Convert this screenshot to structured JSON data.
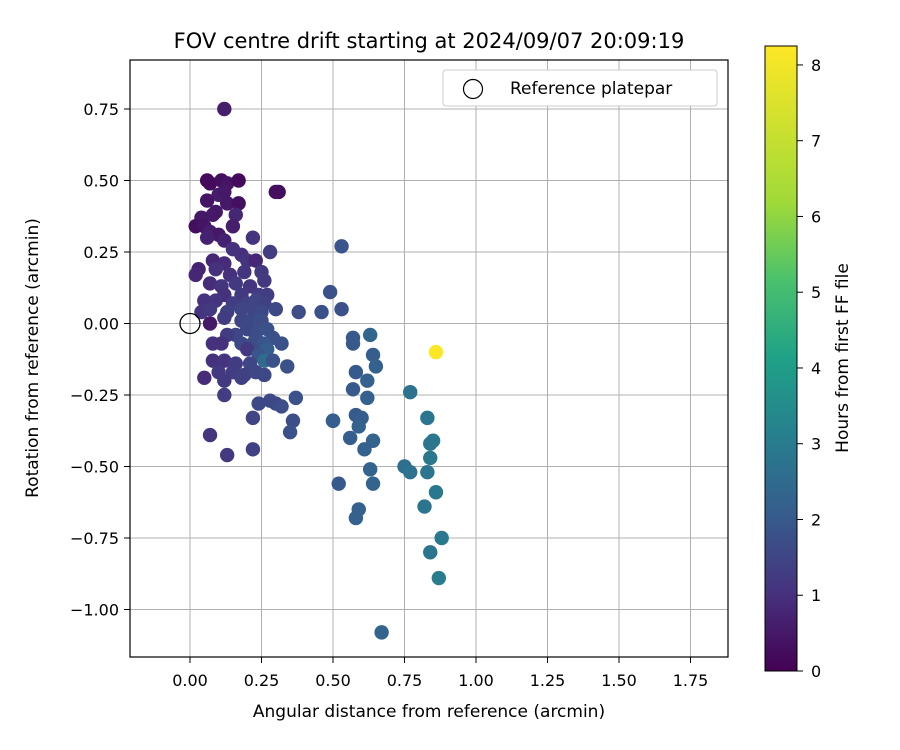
{
  "chart_data": {
    "type": "scatter",
    "title": "FOV centre drift starting at 2024/09/07 20:09:19",
    "xlabel": "Angular distance from reference (arcmin)",
    "ylabel": "Rotation from reference (arcmin)",
    "xlim": [
      -0.21,
      1.89
    ],
    "ylim": [
      -1.17,
      0.92
    ],
    "xticks": [
      "0.00",
      "0.25",
      "0.50",
      "0.75",
      "1.00",
      "1.25",
      "1.50",
      "1.75"
    ],
    "xtick_values": [
      0,
      0.25,
      0.5,
      0.75,
      1.0,
      1.25,
      1.5,
      1.75
    ],
    "yticks": [
      "0.75",
      "0.50",
      "0.25",
      "0.00",
      "−0.25",
      "−0.50",
      "−0.75",
      "−1.00"
    ],
    "ytick_values": [
      0.75,
      0.5,
      0.25,
      0,
      -0.25,
      -0.5,
      -0.75,
      -1.0
    ],
    "grid": true,
    "legend_position": "top-right",
    "legend": {
      "marker": "open-circle",
      "label": "Reference platepar"
    },
    "reference_point": {
      "x": 0.0,
      "y": 0.0
    },
    "colorbar": {
      "label": "Hours from first FF file",
      "colormap": "viridis",
      "range": [
        0,
        8.25
      ],
      "ticks": [
        "0",
        "1",
        "2",
        "3",
        "4",
        "5",
        "6",
        "7",
        "8"
      ],
      "tick_values": [
        0,
        1,
        2,
        3,
        4,
        5,
        6,
        7,
        8
      ]
    },
    "points": [
      {
        "x": 0.12,
        "y": 0.75,
        "h": 0.6
      },
      {
        "x": 0.06,
        "y": 0.5,
        "h": 0.2
      },
      {
        "x": 0.07,
        "y": 0.49,
        "h": 0.2
      },
      {
        "x": 0.11,
        "y": 0.5,
        "h": 0.3
      },
      {
        "x": 0.13,
        "y": 0.49,
        "h": 0.4
      },
      {
        "x": 0.17,
        "y": 0.5,
        "h": 0.2
      },
      {
        "x": 0.3,
        "y": 0.46,
        "h": 0.3
      },
      {
        "x": 0.31,
        "y": 0.46,
        "h": 0.3
      },
      {
        "x": 0.1,
        "y": 0.45,
        "h": 0.6
      },
      {
        "x": 0.12,
        "y": 0.46,
        "h": 0.5
      },
      {
        "x": 0.06,
        "y": 0.43,
        "h": 0.4
      },
      {
        "x": 0.13,
        "y": 0.42,
        "h": 0.5
      },
      {
        "x": 0.17,
        "y": 0.42,
        "h": 0.3
      },
      {
        "x": 0.09,
        "y": 0.39,
        "h": 0.5
      },
      {
        "x": 0.16,
        "y": 0.38,
        "h": 0.8
      },
      {
        "x": 0.04,
        "y": 0.37,
        "h": 0.5
      },
      {
        "x": 0.08,
        "y": 0.38,
        "h": 0.5
      },
      {
        "x": 0.02,
        "y": 0.34,
        "h": 0.3
      },
      {
        "x": 0.05,
        "y": 0.34,
        "h": 0.4
      },
      {
        "x": 0.15,
        "y": 0.34,
        "h": 0.6
      },
      {
        "x": 0.07,
        "y": 0.32,
        "h": 0.6
      },
      {
        "x": 0.1,
        "y": 0.31,
        "h": 0.5
      },
      {
        "x": 0.06,
        "y": 0.3,
        "h": 0.7
      },
      {
        "x": 0.12,
        "y": 0.29,
        "h": 0.7
      },
      {
        "x": 0.22,
        "y": 0.3,
        "h": 1.1
      },
      {
        "x": 0.15,
        "y": 0.26,
        "h": 1.0
      },
      {
        "x": 0.28,
        "y": 0.25,
        "h": 1.3
      },
      {
        "x": 0.18,
        "y": 0.24,
        "h": 1.0
      },
      {
        "x": 0.08,
        "y": 0.22,
        "h": 0.8
      },
      {
        "x": 0.12,
        "y": 0.21,
        "h": 0.9
      },
      {
        "x": 0.2,
        "y": 0.22,
        "h": 1.1
      },
      {
        "x": 0.23,
        "y": 0.22,
        "h": 0.8
      },
      {
        "x": 0.03,
        "y": 0.19,
        "h": 0.7
      },
      {
        "x": 0.02,
        "y": 0.17,
        "h": 0.8
      },
      {
        "x": 0.09,
        "y": 0.19,
        "h": 1.0
      },
      {
        "x": 0.14,
        "y": 0.17,
        "h": 1.0
      },
      {
        "x": 0.19,
        "y": 0.18,
        "h": 1.1
      },
      {
        "x": 0.25,
        "y": 0.18,
        "h": 1.2
      },
      {
        "x": 0.26,
        "y": 0.15,
        "h": 1.2
      },
      {
        "x": 0.07,
        "y": 0.14,
        "h": 0.9
      },
      {
        "x": 0.11,
        "y": 0.13,
        "h": 1.1
      },
      {
        "x": 0.16,
        "y": 0.14,
        "h": 1.2
      },
      {
        "x": 0.21,
        "y": 0.13,
        "h": 1.1
      },
      {
        "x": 0.12,
        "y": 0.1,
        "h": 1.0
      },
      {
        "x": 0.18,
        "y": 0.1,
        "h": 1.2
      },
      {
        "x": 0.24,
        "y": 0.1,
        "h": 1.3
      },
      {
        "x": 0.27,
        "y": 0.1,
        "h": 1.3
      },
      {
        "x": 0.05,
        "y": 0.08,
        "h": 1.0
      },
      {
        "x": 0.09,
        "y": 0.08,
        "h": 1.1
      },
      {
        "x": 0.15,
        "y": 0.07,
        "h": 1.3
      },
      {
        "x": 0.2,
        "y": 0.07,
        "h": 1.4
      },
      {
        "x": 0.23,
        "y": 0.08,
        "h": 1.5
      },
      {
        "x": 0.26,
        "y": 0.07,
        "h": 1.4
      },
      {
        "x": 0.04,
        "y": 0.04,
        "h": 1.1
      },
      {
        "x": 0.07,
        "y": 0.05,
        "h": 1.2
      },
      {
        "x": 0.13,
        "y": 0.04,
        "h": 1.4
      },
      {
        "x": 0.18,
        "y": 0.05,
        "h": 1.5
      },
      {
        "x": 0.22,
        "y": 0.05,
        "h": 1.5
      },
      {
        "x": 0.25,
        "y": 0.04,
        "h": 1.6
      },
      {
        "x": 0.3,
        "y": 0.05,
        "h": 1.6
      },
      {
        "x": 0.38,
        "y": 0.04,
        "h": 1.7
      },
      {
        "x": 0.46,
        "y": 0.04,
        "h": 1.8
      },
      {
        "x": 0.53,
        "y": 0.05,
        "h": 1.8
      },
      {
        "x": 0.49,
        "y": 0.11,
        "h": 1.8
      },
      {
        "x": 0.53,
        "y": 0.27,
        "h": 1.9
      },
      {
        "x": 0.12,
        "y": 0.02,
        "h": 1.3
      },
      {
        "x": 0.18,
        "y": 0.01,
        "h": 1.5
      },
      {
        "x": 0.21,
        "y": 0.01,
        "h": 1.6
      },
      {
        "x": 0.25,
        "y": 0.01,
        "h": 1.7
      },
      {
        "x": 0.07,
        "y": 0.0,
        "h": 0.5
      },
      {
        "x": 0.2,
        "y": -0.02,
        "h": 1.6
      },
      {
        "x": 0.24,
        "y": -0.02,
        "h": 1.7
      },
      {
        "x": 0.27,
        "y": -0.02,
        "h": 1.8
      },
      {
        "x": 0.16,
        "y": -0.04,
        "h": 1.5
      },
      {
        "x": 0.13,
        "y": -0.04,
        "h": 1.3
      },
      {
        "x": 0.23,
        "y": -0.05,
        "h": 1.7
      },
      {
        "x": 0.29,
        "y": -0.05,
        "h": 1.8
      },
      {
        "x": 0.08,
        "y": -0.07,
        "h": 1.0
      },
      {
        "x": 0.11,
        "y": -0.07,
        "h": 1.0
      },
      {
        "x": 0.18,
        "y": -0.07,
        "h": 1.6
      },
      {
        "x": 0.22,
        "y": -0.07,
        "h": 1.7
      },
      {
        "x": 0.26,
        "y": -0.07,
        "h": 1.9
      },
      {
        "x": 0.32,
        "y": -0.07,
        "h": 1.8
      },
      {
        "x": 0.2,
        "y": -0.09,
        "h": 1.2
      },
      {
        "x": 0.27,
        "y": -0.09,
        "h": 2.1
      },
      {
        "x": 0.24,
        "y": -0.11,
        "h": 1.9
      },
      {
        "x": 0.26,
        "y": -0.13,
        "h": 2.5
      },
      {
        "x": 0.08,
        "y": -0.13,
        "h": 1.0
      },
      {
        "x": 0.12,
        "y": -0.13,
        "h": 1.1
      },
      {
        "x": 0.16,
        "y": -0.14,
        "h": 1.3
      },
      {
        "x": 0.21,
        "y": -0.14,
        "h": 1.5
      },
      {
        "x": 0.29,
        "y": -0.13,
        "h": 1.8
      },
      {
        "x": 0.34,
        "y": -0.15,
        "h": 1.8
      },
      {
        "x": 0.1,
        "y": -0.17,
        "h": 1.2
      },
      {
        "x": 0.15,
        "y": -0.17,
        "h": 1.3
      },
      {
        "x": 0.19,
        "y": -0.18,
        "h": 1.4
      },
      {
        "x": 0.23,
        "y": -0.17,
        "h": 1.5
      },
      {
        "x": 0.26,
        "y": -0.18,
        "h": 1.6
      },
      {
        "x": 0.05,
        "y": -0.19,
        "h": 0.9
      },
      {
        "x": 0.12,
        "y": -0.2,
        "h": 1.2
      },
      {
        "x": 0.18,
        "y": -0.19,
        "h": 1.4
      },
      {
        "x": 0.12,
        "y": -0.25,
        "h": 1.3
      },
      {
        "x": 0.28,
        "y": -0.27,
        "h": 1.6
      },
      {
        "x": 0.24,
        "y": -0.28,
        "h": 1.6
      },
      {
        "x": 0.3,
        "y": -0.28,
        "h": 1.6
      },
      {
        "x": 0.32,
        "y": -0.29,
        "h": 1.7
      },
      {
        "x": 0.37,
        "y": -0.26,
        "h": 1.8
      },
      {
        "x": 0.22,
        "y": -0.33,
        "h": 1.5
      },
      {
        "x": 0.36,
        "y": -0.34,
        "h": 1.7
      },
      {
        "x": 0.35,
        "y": -0.38,
        "h": 1.8
      },
      {
        "x": 0.07,
        "y": -0.39,
        "h": 1.1
      },
      {
        "x": 0.22,
        "y": -0.44,
        "h": 1.4
      },
      {
        "x": 0.13,
        "y": -0.46,
        "h": 1.2
      },
      {
        "x": 0.5,
        "y": -0.34,
        "h": 2.4
      },
      {
        "x": 0.5,
        "y": -0.34,
        "h": 2.1
      },
      {
        "x": 0.57,
        "y": -0.05,
        "h": 2.0
      },
      {
        "x": 0.57,
        "y": -0.07,
        "h": 2.0
      },
      {
        "x": 0.63,
        "y": -0.04,
        "h": 2.4
      },
      {
        "x": 0.64,
        "y": -0.11,
        "h": 2.1
      },
      {
        "x": 0.65,
        "y": -0.15,
        "h": 2.2
      },
      {
        "x": 0.58,
        "y": -0.17,
        "h": 2.0
      },
      {
        "x": 0.62,
        "y": -0.2,
        "h": 2.2
      },
      {
        "x": 0.57,
        "y": -0.23,
        "h": 2.0
      },
      {
        "x": 0.62,
        "y": -0.26,
        "h": 2.2
      },
      {
        "x": 0.58,
        "y": -0.32,
        "h": 2.0
      },
      {
        "x": 0.6,
        "y": -0.33,
        "h": 2.1
      },
      {
        "x": 0.59,
        "y": -0.36,
        "h": 2.2
      },
      {
        "x": 0.56,
        "y": -0.4,
        "h": 2.1
      },
      {
        "x": 0.64,
        "y": -0.41,
        "h": 2.3
      },
      {
        "x": 0.61,
        "y": -0.44,
        "h": 2.2
      },
      {
        "x": 0.63,
        "y": -0.51,
        "h": 2.3
      },
      {
        "x": 0.64,
        "y": -0.56,
        "h": 2.3
      },
      {
        "x": 0.52,
        "y": -0.56,
        "h": 2.0
      },
      {
        "x": 0.59,
        "y": -0.65,
        "h": 2.2
      },
      {
        "x": 0.58,
        "y": -0.68,
        "h": 2.2
      },
      {
        "x": 0.67,
        "y": -1.08,
        "h": 2.3
      },
      {
        "x": 0.77,
        "y": -0.24,
        "h": 2.7
      },
      {
        "x": 0.83,
        "y": -0.33,
        "h": 2.8
      },
      {
        "x": 0.85,
        "y": -0.41,
        "h": 2.9
      },
      {
        "x": 0.84,
        "y": -0.42,
        "h": 2.8
      },
      {
        "x": 0.84,
        "y": -0.47,
        "h": 2.9
      },
      {
        "x": 0.75,
        "y": -0.5,
        "h": 2.6
      },
      {
        "x": 0.77,
        "y": -0.52,
        "h": 2.7
      },
      {
        "x": 0.83,
        "y": -0.52,
        "h": 2.8
      },
      {
        "x": 0.86,
        "y": -0.59,
        "h": 2.9
      },
      {
        "x": 0.82,
        "y": -0.64,
        "h": 2.8
      },
      {
        "x": 0.88,
        "y": -0.75,
        "h": 2.9
      },
      {
        "x": 0.84,
        "y": -0.8,
        "h": 2.8
      },
      {
        "x": 0.87,
        "y": -0.89,
        "h": 3.0
      },
      {
        "x": 0.86,
        "y": -0.1,
        "h": 8.2
      }
    ]
  }
}
